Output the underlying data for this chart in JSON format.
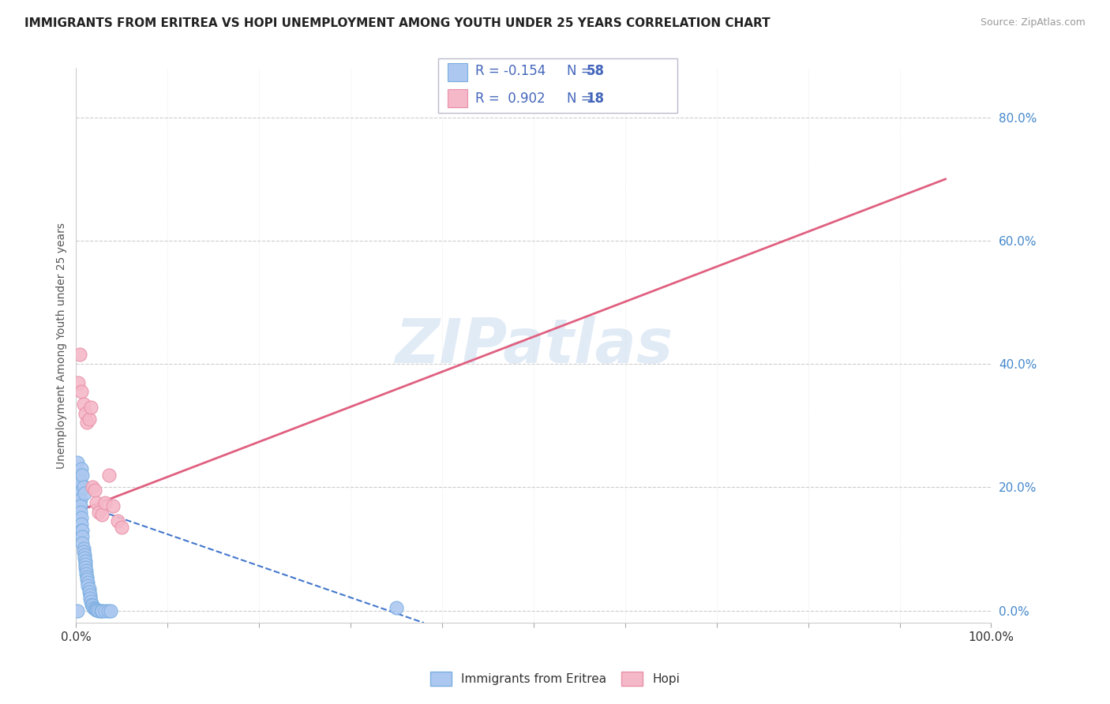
{
  "title": "IMMIGRANTS FROM ERITREA VS HOPI UNEMPLOYMENT AMONG YOUTH UNDER 25 YEARS CORRELATION CHART",
  "source": "Source: ZipAtlas.com",
  "ylabel": "Unemployment Among Youth under 25 years",
  "xlim": [
    0,
    1.0
  ],
  "ylim": [
    -0.02,
    0.88
  ],
  "yticks": [
    0.0,
    0.2,
    0.4,
    0.6,
    0.8
  ],
  "ytick_labels": [
    "0.0%",
    "20.0%",
    "40.0%",
    "60.0%",
    "80.0%"
  ],
  "blue_label": "Immigrants from Eritrea",
  "pink_label": "Hopi",
  "blue_R": -0.154,
  "blue_N": 58,
  "pink_R": 0.902,
  "pink_N": 18,
  "blue_color": "#adc8f0",
  "pink_color": "#f5b8c8",
  "blue_edge": "#7aaee0",
  "pink_edge": "#e890a8",
  "blue_trend_color": "#4477cc",
  "pink_trend_color": "#e06080",
  "watermark": "ZIPatlas",
  "blue_scatter_x": [
    0.001,
    0.002,
    0.002,
    0.002,
    0.003,
    0.003,
    0.003,
    0.004,
    0.004,
    0.004,
    0.005,
    0.005,
    0.005,
    0.006,
    0.006,
    0.006,
    0.007,
    0.007,
    0.007,
    0.008,
    0.008,
    0.009,
    0.009,
    0.01,
    0.01,
    0.01,
    0.011,
    0.011,
    0.012,
    0.012,
    0.013,
    0.013,
    0.014,
    0.014,
    0.015,
    0.015,
    0.016,
    0.017,
    0.018,
    0.019,
    0.02,
    0.021,
    0.022,
    0.023,
    0.025,
    0.027,
    0.028,
    0.032,
    0.035,
    0.038,
    0.004,
    0.005,
    0.006,
    0.007,
    0.008,
    0.009,
    0.001,
    0.35
  ],
  "blue_scatter_y": [
    0.24,
    0.22,
    0.21,
    0.2,
    0.19,
    0.18,
    0.17,
    0.21,
    0.2,
    0.19,
    0.18,
    0.17,
    0.16,
    0.15,
    0.14,
    0.13,
    0.13,
    0.12,
    0.11,
    0.1,
    0.095,
    0.09,
    0.085,
    0.08,
    0.075,
    0.07,
    0.065,
    0.06,
    0.055,
    0.05,
    0.045,
    0.04,
    0.035,
    0.03,
    0.025,
    0.02,
    0.015,
    0.01,
    0.008,
    0.005,
    0.003,
    0.002,
    0.001,
    0.001,
    0.0,
    0.0,
    0.0,
    0.0,
    0.0,
    0.0,
    0.22,
    0.21,
    0.23,
    0.22,
    0.2,
    0.19,
    0.0,
    0.005
  ],
  "pink_scatter_x": [
    0.002,
    0.004,
    0.006,
    0.008,
    0.01,
    0.012,
    0.014,
    0.016,
    0.018,
    0.02,
    0.022,
    0.025,
    0.028,
    0.032,
    0.036,
    0.04,
    0.045,
    0.05
  ],
  "pink_scatter_y": [
    0.37,
    0.415,
    0.355,
    0.335,
    0.32,
    0.305,
    0.31,
    0.33,
    0.2,
    0.195,
    0.175,
    0.16,
    0.155,
    0.175,
    0.22,
    0.17,
    0.145,
    0.135
  ],
  "pink_trend_x0": 0.0,
  "pink_trend_x1": 0.95,
  "pink_trend_y0": 0.16,
  "pink_trend_y1": 0.7,
  "blue_trend_x0": 0.0,
  "blue_trend_x1": 0.38,
  "blue_trend_y0": 0.175,
  "blue_trend_y1": -0.02
}
